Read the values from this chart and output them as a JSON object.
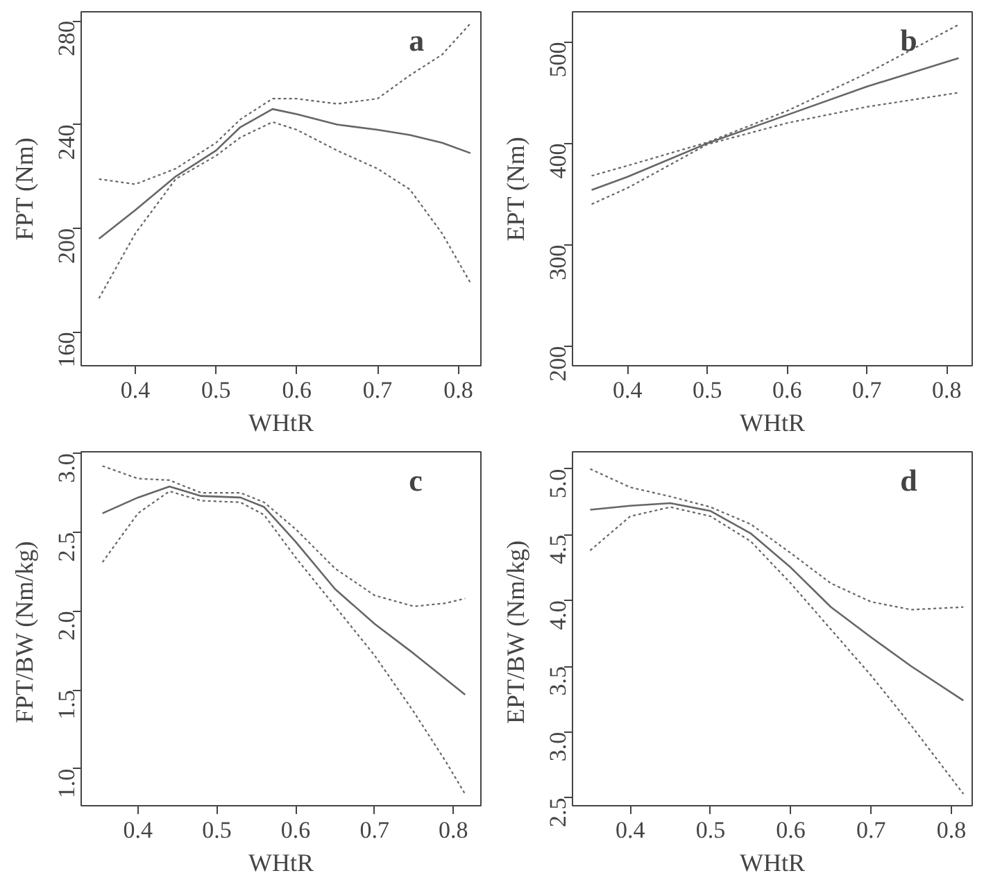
{
  "chart_data": [
    {
      "type": "line",
      "xlabel": "WHtR",
      "ylabel": "FPT (Nm)",
      "annotations": [
        "a"
      ],
      "xlim": [
        0.333,
        0.828
      ],
      "ylim": [
        147,
        283.5
      ],
      "xticks": [
        0.4,
        0.5,
        0.6,
        0.7,
        0.8
      ],
      "yticks": [
        160,
        200,
        240,
        280
      ],
      "grid": false,
      "line_style": "solid",
      "x": [
        0.355,
        0.4,
        0.45,
        0.5,
        0.53,
        0.57,
        0.6,
        0.65,
        0.7,
        0.74,
        0.78,
        0.815
      ],
      "series": [
        {
          "color": "#666666",
          "values": [
            196,
            207,
            220,
            230,
            239,
            246,
            244,
            240,
            238,
            236,
            233,
            229
          ]
        },
        {
          "color": "#666666",
          "line_style": "dotted",
          "values": [
            219,
            217,
            223,
            233,
            242,
            250,
            250,
            248,
            250,
            259,
            267,
            279
          ]
        },
        {
          "color": "#666666",
          "line_style": "dotted",
          "values": [
            173,
            198,
            219,
            228,
            235,
            241,
            238,
            230,
            223,
            215,
            198,
            179
          ]
        }
      ]
    },
    {
      "type": "line",
      "xlabel": "WHtR",
      "ylabel": "EPT (Nm)",
      "annotations": [
        "b"
      ],
      "xlim": [
        0.331,
        0.832
      ],
      "ylim": [
        180.7,
        529.7
      ],
      "xticks": [
        0.4,
        0.5,
        0.6,
        0.7,
        0.8
      ],
      "yticks": [
        200,
        300,
        400,
        500
      ],
      "grid": false,
      "line_style": "solid",
      "x": [
        0.355,
        0.4,
        0.5,
        0.6,
        0.7,
        0.815
      ],
      "series": [
        {
          "color": "#666666",
          "values": [
            354,
            367,
            400,
            428,
            456,
            484
          ]
        },
        {
          "color": "#666666",
          "line_style": "dotted",
          "values": [
            368,
            378,
            401,
            432,
            469,
            517
          ]
        },
        {
          "color": "#666666",
          "line_style": "dotted",
          "values": [
            340,
            356,
            399,
            420,
            436,
            450
          ]
        }
      ]
    },
    {
      "type": "line",
      "xlabel": "WHtR",
      "ylabel": "FPT/BW  (Nm/kg)",
      "annotations": [
        "c"
      ],
      "xlim": [
        0.328,
        0.835
      ],
      "ylim": [
        0.766,
        3.01
      ],
      "xticks": [
        0.4,
        0.5,
        0.6,
        0.7,
        0.8
      ],
      "yticks": [
        {
          "value": 1.0,
          "label": "1.0"
        },
        1.5,
        {
          "value": 2.0,
          "label": "2.0"
        },
        2.5,
        {
          "value": 3.0,
          "label": "3.0"
        }
      ],
      "grid": false,
      "line_style": "solid",
      "x": [
        0.355,
        0.4,
        0.44,
        0.48,
        0.53,
        0.56,
        0.6,
        0.65,
        0.7,
        0.75,
        0.79,
        0.815
      ],
      "series": [
        {
          "color": "#666666",
          "values": [
            2.62,
            2.72,
            2.79,
            2.73,
            2.72,
            2.66,
            2.44,
            2.14,
            1.92,
            1.73,
            1.57,
            1.47
          ]
        },
        {
          "color": "#666666",
          "line_style": "dotted",
          "values": [
            2.92,
            2.84,
            2.83,
            2.75,
            2.75,
            2.69,
            2.52,
            2.27,
            2.1,
            2.03,
            2.05,
            2.08
          ]
        },
        {
          "color": "#666666",
          "line_style": "dotted",
          "values": [
            2.31,
            2.62,
            2.76,
            2.7,
            2.69,
            2.61,
            2.34,
            2.03,
            1.72,
            1.36,
            1.05,
            0.84
          ]
        }
      ]
    },
    {
      "type": "line",
      "xlabel": "WHtR",
      "ylabel": "EPT/BW  (Nm/kg)",
      "annotations": [
        "d"
      ],
      "xlim": [
        0.328,
        0.826
      ],
      "ylim": [
        2.44,
        5.13
      ],
      "xticks": [
        0.4,
        0.5,
        0.6,
        0.7,
        0.8
      ],
      "yticks": [
        2.5,
        {
          "value": 3.0,
          "label": "3.0"
        },
        3.5,
        {
          "value": 4.0,
          "label": "4.0"
        },
        4.5,
        {
          "value": 5.0,
          "label": "5.0"
        }
      ],
      "grid": false,
      "line_style": "solid",
      "x": [
        0.35,
        0.4,
        0.45,
        0.5,
        0.55,
        0.6,
        0.65,
        0.7,
        0.75,
        0.815
      ],
      "series": [
        {
          "color": "#666666",
          "values": [
            4.69,
            4.72,
            4.74,
            4.68,
            4.51,
            4.25,
            3.95,
            3.72,
            3.5,
            3.24
          ]
        },
        {
          "color": "#666666",
          "line_style": "dotted",
          "values": [
            5.0,
            4.86,
            4.79,
            4.71,
            4.58,
            4.36,
            4.13,
            3.99,
            3.93,
            3.95
          ]
        },
        {
          "color": "#666666",
          "line_style": "dotted",
          "values": [
            4.38,
            4.64,
            4.71,
            4.64,
            4.45,
            4.13,
            3.78,
            3.43,
            3.05,
            2.53
          ]
        }
      ]
    }
  ]
}
